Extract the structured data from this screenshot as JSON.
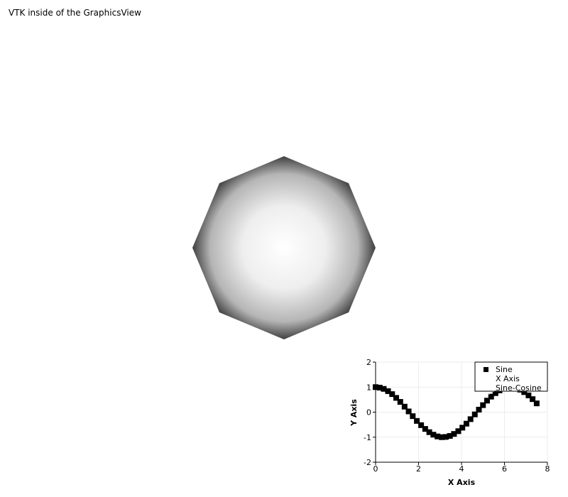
{
  "window": {
    "title": "VTK inside of the GraphicsView"
  },
  "scene": {
    "shape": "octagon",
    "fill_center": "#ffffff",
    "fill_edge": "#3a3a3a"
  },
  "chart_data": {
    "type": "scatter",
    "xlabel": "X Axis",
    "ylabel": "Y Axis",
    "xlim": [
      0,
      8
    ],
    "ylim": [
      -2,
      2
    ],
    "xticks": [
      "0",
      "2",
      "4",
      "6",
      "8"
    ],
    "yticks": [
      "2",
      "1",
      "0",
      "-1",
      "-2"
    ],
    "grid": true,
    "legend_placement": "top-right",
    "legend": [
      "Sine",
      "X Axis",
      "Sine-Cosine"
    ],
    "series": [
      {
        "name": "Sine",
        "marker": "square",
        "color": "#000000",
        "x": [
          0,
          0.19,
          0.38,
          0.58,
          0.77,
          0.96,
          1.15,
          1.35,
          1.54,
          1.73,
          1.92,
          2.12,
          2.31,
          2.5,
          2.69,
          2.88,
          3.08,
          3.27,
          3.46,
          3.65,
          3.85,
          4.04,
          4.23,
          4.42,
          4.62,
          4.81,
          5.0,
          5.19,
          5.38,
          5.58,
          5.77,
          5.96,
          6.15,
          6.35,
          6.54,
          6.73,
          6.92,
          7.12,
          7.31,
          7.5
        ],
        "y": [
          1,
          0.98,
          0.93,
          0.84,
          0.72,
          0.57,
          0.41,
          0.22,
          0.03,
          -0.16,
          -0.35,
          -0.52,
          -0.67,
          -0.8,
          -0.9,
          -0.97,
          -1.0,
          -0.99,
          -0.95,
          -0.87,
          -0.76,
          -0.62,
          -0.46,
          -0.28,
          -0.09,
          0.1,
          0.28,
          0.46,
          0.62,
          0.76,
          0.87,
          0.95,
          0.99,
          1.0,
          0.97,
          0.9,
          0.8,
          0.67,
          0.52,
          0.35
        ]
      }
    ]
  }
}
